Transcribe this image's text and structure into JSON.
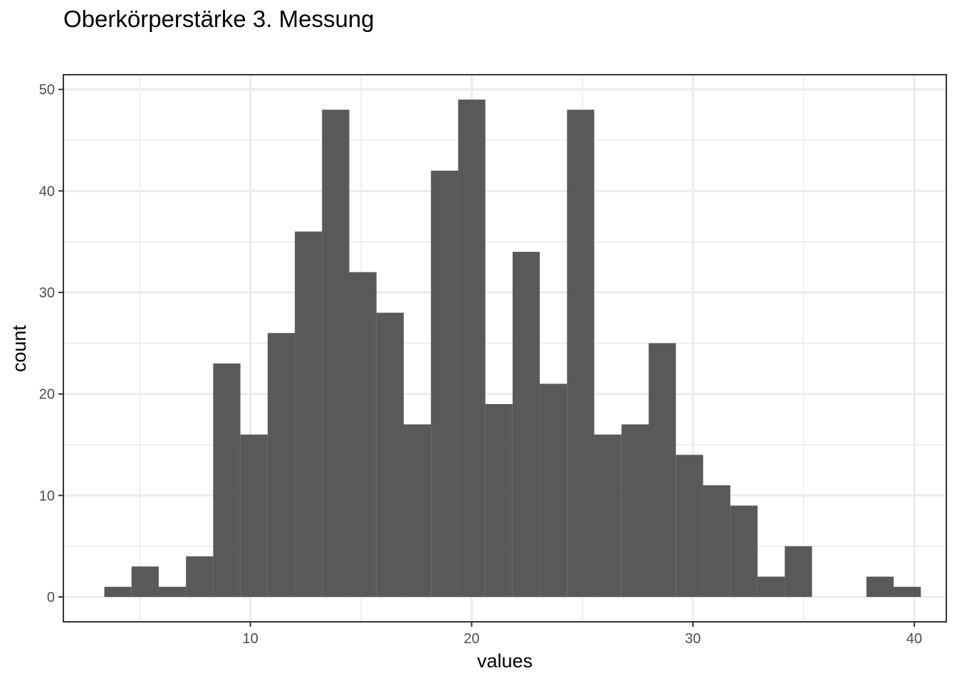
{
  "chart_data": {
    "type": "bar",
    "subtype": "histogram",
    "title": "Oberkörperstärke 3. Messung",
    "xlabel": "values",
    "ylabel": "count",
    "xlim": [
      1.55,
      41.45
    ],
    "ylim": [
      -2.45,
      51.45
    ],
    "xticks": [
      10,
      20,
      30,
      40
    ],
    "yticks": [
      0,
      10,
      20,
      30,
      40,
      50
    ],
    "bin_width": 1.23,
    "bin_start": 3.4,
    "values": [
      1,
      3,
      1,
      4,
      23,
      16,
      26,
      36,
      48,
      32,
      28,
      17,
      42,
      49,
      19,
      34,
      21,
      48,
      16,
      17,
      25,
      14,
      11,
      9,
      2,
      5,
      0,
      0,
      2,
      1
    ],
    "bar_color": "#595959",
    "grid": true,
    "legend": "none"
  }
}
